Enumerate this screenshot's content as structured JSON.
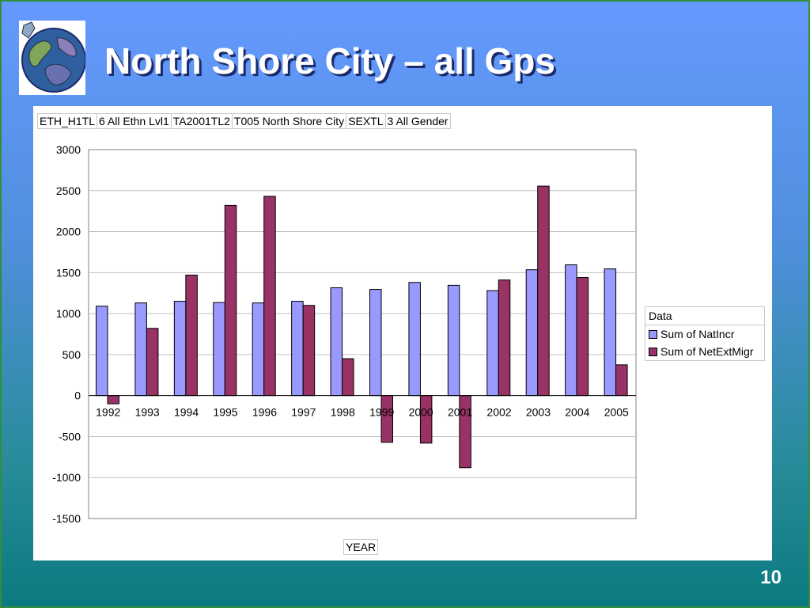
{
  "slide": {
    "title": "North Shore City – all Gps",
    "page_number": "10",
    "colors": {
      "background_top": "#6699ff",
      "background_bottom": "#0b7a80",
      "title": "#ffffff"
    }
  },
  "filters": [
    {
      "field": "ETH_H1TL",
      "value": "6 All Ethn Lvl1"
    },
    {
      "field": "TA2001TL2",
      "value": "T005 North Shore City"
    },
    {
      "field": "SEXTL",
      "value": "3 All Gender"
    }
  ],
  "chart_data": {
    "type": "bar",
    "categories": [
      "1992",
      "1993",
      "1994",
      "1995",
      "1996",
      "1997",
      "1998",
      "1999",
      "2000",
      "2001",
      "2002",
      "2003",
      "2004",
      "2005"
    ],
    "series": [
      {
        "name": "Sum of NatIncr",
        "color": "#9999ff",
        "values": [
          1090,
          1130,
          1150,
          1135,
          1130,
          1150,
          1315,
          1295,
          1380,
          1345,
          1280,
          1535,
          1595,
          1545
        ]
      },
      {
        "name": "Sum of NetExtMigr",
        "color": "#993366",
        "values": [
          -100,
          820,
          1470,
          2320,
          2430,
          1100,
          450,
          -570,
          -580,
          -880,
          1410,
          2555,
          1440,
          375
        ]
      }
    ],
    "legend_title": "Data",
    "title": "",
    "xlabel": "YEAR",
    "ylabel": "",
    "ylim": [
      -1500,
      3000
    ],
    "yticks": [
      3000,
      2500,
      2000,
      1500,
      1000,
      500,
      0,
      -500,
      -1000,
      -1500
    ],
    "grid": true,
    "legend_position": "right"
  }
}
